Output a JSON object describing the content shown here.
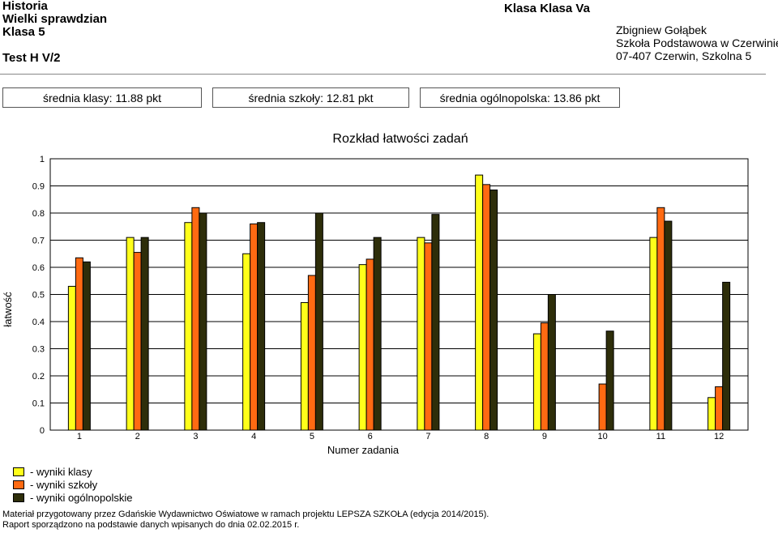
{
  "header": {
    "subject": "Historia",
    "test_name": "Wielki sprawdzian",
    "grade": "Klasa 5",
    "test_code": "Test H V/2",
    "class_label": "Klasa Klasa Va",
    "teacher": "Zbigniew Gołąbek",
    "school": "Szkoła Podstawowa w Czerwinie",
    "address": "07-407 Czerwin, Szkolna 5"
  },
  "averages": {
    "class": "średnia klasy: 11.88 pkt",
    "school": "średnia szkoły: 12.81 pkt",
    "national": "średnia ogólnopolska: 13.86 pkt"
  },
  "legend": {
    "class": "- wyniki klasy",
    "school": "- wyniki szkoły",
    "national": "- wyniki ogólnopolskie"
  },
  "footer": {
    "line1": "Materiał przygotowany przez Gdańskie Wydawnictwo Oświatowe w ramach projektu LEPSZA SZKOŁA (edycja 2014/2015).",
    "line2": "Raport sporządzono na podstawie danych wpisanych do dnia 02.02.2015 r."
  },
  "colors": {
    "class": "#ffff1a",
    "school": "#ff6a12",
    "national": "#2e2e0a"
  },
  "chart_data": {
    "type": "bar",
    "title": "Rozkład łatwości zadań",
    "xlabel": "Numer zadania",
    "ylabel": "łatwość",
    "ylim": [
      0,
      1
    ],
    "yticks": [
      "0",
      "0.1",
      "0.2",
      "0.3",
      "0.4",
      "0.5",
      "0.6",
      "0.7",
      "0.8",
      "0.9",
      "1"
    ],
    "grid": true,
    "categories": [
      "1",
      "2",
      "3",
      "4",
      "5",
      "6",
      "7",
      "8",
      "9",
      "10",
      "11",
      "12"
    ],
    "series": [
      {
        "key": "class",
        "values": [
          0.53,
          0.71,
          0.765,
          0.65,
          0.47,
          0.61,
          0.71,
          0.94,
          0.355,
          0.0,
          0.71,
          0.12
        ]
      },
      {
        "key": "school",
        "values": [
          0.635,
          0.655,
          0.82,
          0.76,
          0.57,
          0.63,
          0.69,
          0.905,
          0.395,
          0.17,
          0.82,
          0.16
        ]
      },
      {
        "key": "national",
        "values": [
          0.62,
          0.71,
          0.8,
          0.765,
          0.8,
          0.71,
          0.795,
          0.885,
          0.5,
          0.365,
          0.77,
          0.545
        ]
      }
    ]
  }
}
